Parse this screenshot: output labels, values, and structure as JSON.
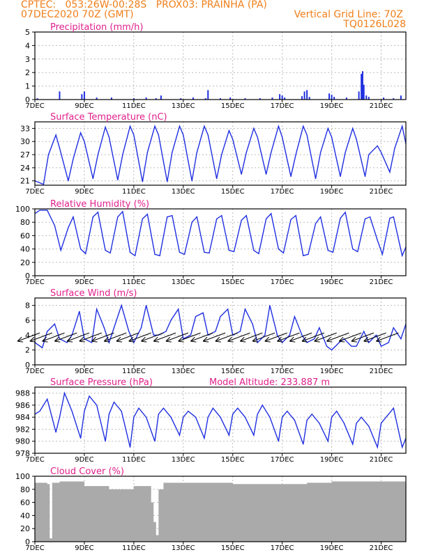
{
  "header": {
    "line1_left": "CPTEC:   053:26W-00:28S   PROX03: PRAINHA (PA)",
    "line2_left": "07DEC2020 70Z (GMT)",
    "line2_right": "Vertical Grid Line: 70Z",
    "line3_right": "TQ0126L028"
  },
  "colors": {
    "header": "#f07f1a",
    "title": "#e0208c",
    "series": "#1f2fe0",
    "cloud": "#aaaaaa",
    "grid": "#bbbbbb"
  },
  "x_ticks": [
    "7DEC",
    "9DEC",
    "11DEC",
    "13DEC",
    "15DEC",
    "17DEC",
    "19DEC",
    "21DEC"
  ],
  "x_tick_days": [
    0,
    2,
    4,
    6,
    8,
    10,
    12,
    14
  ],
  "x_range": [
    0,
    15
  ],
  "chart_data": [
    {
      "type": "bar",
      "title": "Precipitation (mm/h)",
      "ylim": [
        0,
        5
      ],
      "yticks": [
        0,
        1,
        2,
        3,
        4,
        5
      ],
      "x": [
        0.1,
        1.0,
        1.9,
        2.0,
        2.5,
        3.1,
        4.0,
        4.5,
        4.9,
        5.1,
        5.9,
        6.4,
        6.9,
        7.0,
        7.5,
        7.9,
        8.5,
        9.1,
        9.6,
        9.9,
        10.0,
        10.1,
        10.8,
        10.9,
        11.0,
        11.1,
        11.9,
        12.0,
        12.1,
        12.6,
        13.1,
        13.2,
        13.25,
        13.3,
        13.4,
        13.5,
        14.1,
        14.5,
        14.8
      ],
      "values": [
        0.1,
        0.6,
        0.4,
        0.6,
        0.15,
        0.15,
        0.1,
        0.15,
        0.1,
        0.3,
        0.1,
        0.15,
        0.1,
        0.7,
        0.1,
        0.15,
        0.1,
        0.1,
        0.15,
        0.4,
        0.3,
        0.15,
        0.25,
        0.6,
        0.7,
        0.2,
        0.45,
        0.35,
        0.2,
        0.15,
        0.6,
        1.9,
        2.1,
        1.1,
        0.3,
        0.2,
        0.15,
        0.1,
        0.3
      ]
    },
    {
      "type": "line",
      "title": "Surface Temperature (nC)",
      "ylim": [
        20,
        34.5
      ],
      "yticks": [
        21,
        24,
        27,
        30,
        33
      ],
      "x": [
        0,
        0.35,
        0.55,
        0.85,
        1.0,
        1.35,
        1.55,
        1.85,
        2.0,
        2.35,
        2.55,
        2.85,
        3.0,
        3.35,
        3.55,
        3.85,
        4.0,
        4.35,
        4.55,
        4.85,
        5.0,
        5.35,
        5.55,
        5.85,
        6.0,
        6.35,
        6.55,
        6.85,
        7.0,
        7.35,
        7.55,
        7.85,
        8.0,
        8.35,
        8.55,
        8.85,
        9.0,
        9.35,
        9.55,
        9.85,
        10.0,
        10.35,
        10.55,
        10.85,
        11.0,
        11.35,
        11.55,
        11.85,
        12.0,
        12.35,
        12.55,
        12.85,
        13.0,
        13.35,
        13.5,
        13.85,
        14.0,
        14.35,
        14.55,
        14.85,
        15.0
      ],
      "values": [
        21,
        20.2,
        27,
        31.5,
        28.5,
        21,
        26,
        32,
        30,
        21.5,
        27,
        33.3,
        31,
        21.2,
        27,
        33.5,
        31.5,
        20.8,
        27.5,
        33.5,
        31.5,
        20.8,
        27.5,
        33.5,
        31.5,
        21,
        27.5,
        33.5,
        31.5,
        21.5,
        27,
        32.5,
        30.5,
        22.5,
        27.5,
        33,
        31,
        22.5,
        27.5,
        33.5,
        31,
        22,
        27,
        33.5,
        31.5,
        21.5,
        27.5,
        33,
        31,
        22,
        27.5,
        33,
        30.5,
        22,
        27,
        29,
        27.5,
        23,
        28.5,
        33.5,
        29.5
      ]
    },
    {
      "type": "line",
      "title": "Relative Humidity (%)",
      "ylim": [
        0,
        100
      ],
      "yticks": [
        0,
        20,
        40,
        60,
        80,
        100
      ],
      "x": [
        0,
        0.2,
        0.5,
        0.8,
        1.05,
        1.35,
        1.55,
        1.85,
        2.05,
        2.35,
        2.55,
        2.85,
        3.05,
        3.35,
        3.55,
        3.85,
        4.05,
        4.35,
        4.55,
        4.85,
        5.05,
        5.35,
        5.55,
        5.85,
        6.05,
        6.35,
        6.55,
        6.85,
        7.05,
        7.35,
        7.55,
        7.85,
        8.05,
        8.35,
        8.55,
        8.85,
        9.05,
        9.35,
        9.55,
        9.85,
        10.05,
        10.35,
        10.55,
        10.85,
        11.05,
        11.35,
        11.55,
        11.85,
        12.05,
        12.35,
        12.55,
        12.85,
        13.05,
        13.35,
        13.55,
        13.85,
        14.05,
        14.35,
        14.5,
        14.85,
        15.0
      ],
      "values": [
        93,
        98,
        98,
        75,
        38,
        72,
        88,
        40,
        33,
        88,
        95,
        38,
        34,
        88,
        96,
        35,
        30,
        85,
        92,
        32,
        30,
        88,
        90,
        35,
        32,
        80,
        88,
        35,
        34,
        85,
        90,
        38,
        36,
        83,
        90,
        38,
        33,
        85,
        93,
        40,
        34,
        84,
        90,
        30,
        32,
        78,
        88,
        38,
        35,
        86,
        95,
        40,
        36,
        85,
        88,
        53,
        32,
        86,
        88,
        30,
        43
      ]
    },
    {
      "type": "line",
      "title": "Surface Wind (m/s)",
      "ylim": [
        0,
        9
      ],
      "yticks": [
        0,
        2,
        4,
        6,
        8
      ],
      "x": [
        0,
        0.3,
        0.5,
        0.8,
        1.0,
        1.3,
        1.5,
        1.8,
        2.0,
        2.3,
        2.5,
        2.8,
        3.0,
        3.3,
        3.5,
        3.8,
        4.0,
        4.3,
        4.5,
        4.8,
        5.0,
        5.3,
        5.5,
        5.8,
        6.0,
        6.3,
        6.5,
        6.8,
        7.0,
        7.3,
        7.5,
        7.8,
        8.0,
        8.3,
        8.5,
        8.8,
        9.0,
        9.3,
        9.5,
        9.8,
        10.0,
        10.3,
        10.5,
        10.8,
        11.0,
        11.3,
        11.5,
        11.8,
        12.0,
        12.3,
        12.5,
        12.8,
        13.0,
        13.3,
        13.5,
        13.8,
        14.0,
        14.3,
        14.5,
        14.8,
        15.0
      ],
      "values": [
        3,
        2.3,
        4.5,
        5.5,
        3.5,
        3,
        4,
        7.2,
        3.5,
        3,
        7.5,
        5,
        3,
        6,
        8,
        4.5,
        3,
        5,
        8,
        4,
        4,
        4.5,
        6,
        7.5,
        3.5,
        4,
        6.5,
        7,
        4,
        4.5,
        6.5,
        7.5,
        4,
        4.5,
        7.5,
        5.5,
        3,
        4,
        8,
        4,
        3,
        4,
        6.5,
        4,
        3,
        3.5,
        5,
        2.5,
        2,
        3,
        3.5,
        2.5,
        2.5,
        4.5,
        3,
        4,
        2.5,
        3,
        5,
        3.5,
        5.5
      ]
    },
    {
      "type": "line",
      "title": "Surface Pressure (hPa)",
      "annotation": "Model Altitude: 233.887 m",
      "ylim": [
        978,
        989
      ],
      "yticks": [
        978,
        980,
        982,
        984,
        986,
        988
      ],
      "x": [
        0,
        0.2,
        0.5,
        0.85,
        1.0,
        1.2,
        1.5,
        1.85,
        2.0,
        2.2,
        2.5,
        2.85,
        3.0,
        3.2,
        3.5,
        3.85,
        4.0,
        4.2,
        4.5,
        4.85,
        5.0,
        5.2,
        5.5,
        5.85,
        6.0,
        6.2,
        6.5,
        6.85,
        7.0,
        7.2,
        7.5,
        7.85,
        8.0,
        8.2,
        8.5,
        8.85,
        9.0,
        9.2,
        9.5,
        9.85,
        10.0,
        10.2,
        10.5,
        10.85,
        11.0,
        11.2,
        11.5,
        11.85,
        12.0,
        12.2,
        12.5,
        12.85,
        13.0,
        13.2,
        13.5,
        13.85,
        14.0,
        14.2,
        14.5,
        14.85,
        15.0
      ],
      "values": [
        984.5,
        985,
        987,
        981.5,
        984,
        988,
        985,
        980.5,
        985,
        987.5,
        986,
        980,
        984.5,
        986.5,
        985,
        979,
        984,
        985.5,
        984,
        980,
        984.5,
        985.5,
        984,
        981,
        984,
        985,
        984,
        980.5,
        984,
        985.5,
        984,
        981,
        984.5,
        985.5,
        984,
        981,
        984.5,
        986,
        984,
        980,
        984,
        985,
        983.5,
        979.5,
        983.5,
        984.5,
        983,
        980,
        984,
        985,
        983,
        979.5,
        983,
        984,
        982.5,
        979,
        983,
        984,
        985.5,
        979,
        980.5
      ]
    },
    {
      "type": "bar",
      "title": "Cloud Cover (%)",
      "ylim": [
        0,
        100
      ],
      "yticks": [
        0,
        20,
        40,
        60,
        80,
        100
      ],
      "x": [
        0,
        0.5,
        0.6,
        0.7,
        1,
        2,
        3,
        4,
        4.7,
        4.8,
        4.9,
        5.0,
        5.2,
        6,
        7,
        8,
        9,
        10,
        11,
        12,
        13,
        14,
        15
      ],
      "values": [
        90,
        88,
        5,
        90,
        92,
        85,
        80,
        85,
        60,
        30,
        10,
        80,
        90,
        90,
        90,
        88,
        88,
        88,
        90,
        92,
        92,
        92,
        95
      ]
    }
  ]
}
